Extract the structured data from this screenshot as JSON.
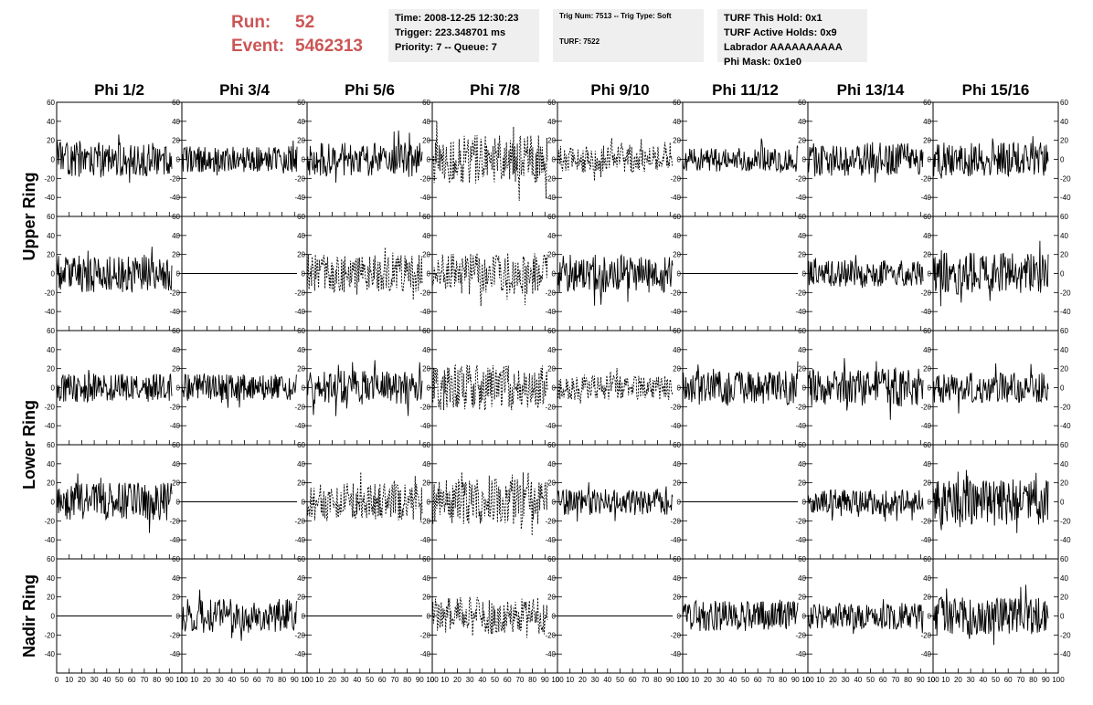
{
  "run_info": {
    "run_label": "Run:",
    "run_value": "52",
    "event_label": "Event:",
    "event_value": "5462313"
  },
  "info_boxes": {
    "time": "Time: 2008-12-25 12:30:23",
    "trigger": "Trigger: 223.348701 ms",
    "priority": "Priority: 7 -- Queue: 7",
    "trig_num": "Trig Num: 7513 -- Trig Type: Soft",
    "turf": "TURF: 7522",
    "turf_this_hold": "TURF This Hold: 0x1",
    "turf_active_holds": "TURF Active Holds: 0x9",
    "labrador": "Labrador AAAAAAAAAA",
    "phi_mask": "Phi Mask: 0x1e0"
  },
  "colors": {
    "run_text": "#cc5555",
    "info_box_bg": "#efefef",
    "trace": "#000000"
  },
  "chart_data": {
    "type": "line",
    "layout": "grid of waveform panels, 5 rows x 8 columns",
    "columns": [
      "Phi 1/2",
      "Phi 3/4",
      "Phi 5/6",
      "Phi 7/8",
      "Phi 9/10",
      "Phi 11/12",
      "Phi 13/14",
      "Phi 15/16"
    ],
    "row_labels": [
      {
        "label": "Upper Ring",
        "rows": [
          0,
          1
        ]
      },
      {
        "label": "Lower Ring",
        "rows": [
          2,
          3
        ]
      },
      {
        "label": "Nadir Ring",
        "rows": [
          4
        ]
      }
    ],
    "ylim": [
      -60,
      60
    ],
    "yticks": [
      -60,
      -40,
      -20,
      0,
      20,
      40,
      60
    ],
    "ytick_labels": [
      "",
      "-40",
      "-20",
      "0",
      "20",
      "40",
      "60"
    ],
    "xlim": [
      0,
      100
    ],
    "xticks": [
      0,
      10,
      20,
      30,
      40,
      50,
      60,
      70,
      80,
      90,
      100
    ],
    "xtick_labels": [
      "0",
      "10",
      "20",
      "30",
      "40",
      "50",
      "60",
      "70",
      "80",
      "90",
      "100"
    ],
    "trace_x_range": [
      0,
      92
    ],
    "style_legend": {
      "solid": "non-triggered channel",
      "dashed": "triggered phi sector (Phi Mask 0x1e0)"
    },
    "panels": [
      {
        "row": 0,
        "col": 0,
        "style": "solid",
        "amplitude": 18,
        "seed": 11
      },
      {
        "row": 0,
        "col": 1,
        "style": "solid",
        "amplitude": 14,
        "seed": 12
      },
      {
        "row": 0,
        "col": 2,
        "style": "solid",
        "amplitude": 18,
        "seed": 13
      },
      {
        "row": 0,
        "col": 3,
        "style": "dashed",
        "amplitude": 26,
        "seed": 14
      },
      {
        "row": 0,
        "col": 4,
        "style": "dashed",
        "amplitude": 14,
        "seed": 15
      },
      {
        "row": 0,
        "col": 5,
        "style": "solid",
        "amplitude": 13,
        "seed": 16
      },
      {
        "row": 0,
        "col": 6,
        "style": "solid",
        "amplitude": 18,
        "seed": 17
      },
      {
        "row": 0,
        "col": 7,
        "style": "solid",
        "amplitude": 18,
        "seed": 18
      },
      {
        "row": 1,
        "col": 0,
        "style": "solid",
        "amplitude": 20,
        "seed": 21
      },
      {
        "row": 1,
        "col": 1,
        "style": "flat",
        "amplitude": 0,
        "seed": 22
      },
      {
        "row": 1,
        "col": 2,
        "style": "dashed",
        "amplitude": 20,
        "seed": 23
      },
      {
        "row": 1,
        "col": 3,
        "style": "dashed",
        "amplitude": 22,
        "seed": 24
      },
      {
        "row": 1,
        "col": 4,
        "style": "solid",
        "amplitude": 20,
        "seed": 25
      },
      {
        "row": 1,
        "col": 5,
        "style": "flat",
        "amplitude": 0,
        "seed": 26
      },
      {
        "row": 1,
        "col": 6,
        "style": "solid",
        "amplitude": 14,
        "seed": 27
      },
      {
        "row": 1,
        "col": 7,
        "style": "solid",
        "amplitude": 22,
        "seed": 28
      },
      {
        "row": 2,
        "col": 0,
        "style": "solid",
        "amplitude": 15,
        "seed": 31
      },
      {
        "row": 2,
        "col": 1,
        "style": "solid",
        "amplitude": 14,
        "seed": 32
      },
      {
        "row": 2,
        "col": 2,
        "style": "solid",
        "amplitude": 18,
        "seed": 33
      },
      {
        "row": 2,
        "col": 3,
        "style": "dashed",
        "amplitude": 24,
        "seed": 34
      },
      {
        "row": 2,
        "col": 4,
        "style": "dashed",
        "amplitude": 13,
        "seed": 35
      },
      {
        "row": 2,
        "col": 5,
        "style": "solid",
        "amplitude": 18,
        "seed": 36
      },
      {
        "row": 2,
        "col": 6,
        "style": "solid",
        "amplitude": 20,
        "seed": 37
      },
      {
        "row": 2,
        "col": 7,
        "style": "solid",
        "amplitude": 16,
        "seed": 38
      },
      {
        "row": 3,
        "col": 0,
        "style": "solid",
        "amplitude": 20,
        "seed": 41
      },
      {
        "row": 3,
        "col": 1,
        "style": "flat",
        "amplitude": 0,
        "seed": 42
      },
      {
        "row": 3,
        "col": 2,
        "style": "dashed",
        "amplitude": 20,
        "seed": 43
      },
      {
        "row": 3,
        "col": 3,
        "style": "dashed",
        "amplitude": 24,
        "seed": 44
      },
      {
        "row": 3,
        "col": 4,
        "style": "solid",
        "amplitude": 14,
        "seed": 45
      },
      {
        "row": 3,
        "col": 5,
        "style": "flat",
        "amplitude": 0,
        "seed": 46
      },
      {
        "row": 3,
        "col": 6,
        "style": "solid",
        "amplitude": 13,
        "seed": 47
      },
      {
        "row": 3,
        "col": 7,
        "style": "solid",
        "amplitude": 24,
        "seed": 48
      },
      {
        "row": 4,
        "col": 0,
        "style": "flat",
        "amplitude": 0,
        "seed": 51
      },
      {
        "row": 4,
        "col": 1,
        "style": "solid",
        "amplitude": 18,
        "seed": 52
      },
      {
        "row": 4,
        "col": 2,
        "style": "flat",
        "amplitude": 0,
        "seed": 53
      },
      {
        "row": 4,
        "col": 3,
        "style": "dashed",
        "amplitude": 20,
        "seed": 54
      },
      {
        "row": 4,
        "col": 4,
        "style": "flat",
        "amplitude": 0,
        "seed": 55
      },
      {
        "row": 4,
        "col": 5,
        "style": "solid",
        "amplitude": 16,
        "seed": 56
      },
      {
        "row": 4,
        "col": 6,
        "style": "solid",
        "amplitude": 14,
        "seed": 57
      },
      {
        "row": 4,
        "col": 7,
        "style": "solid",
        "amplitude": 20,
        "seed": 58
      }
    ]
  }
}
